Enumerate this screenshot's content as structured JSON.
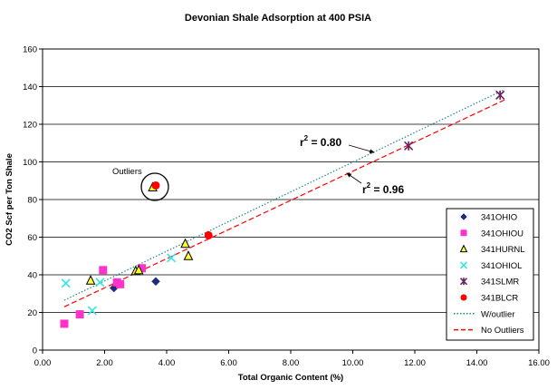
{
  "chart_data": {
    "type": "scatter",
    "title": "Devonian Shale Adsorption at 400 PSIA",
    "xlabel": "Total Organic Content (%)",
    "ylabel": "CO2 Scf per Ton Shale",
    "xlim": [
      0,
      16
    ],
    "ylim": [
      0,
      160
    ],
    "x_ticks": [
      "0.00",
      "2.00",
      "4.00",
      "6.00",
      "8.00",
      "10.00",
      "12.00",
      "14.00",
      "16.00"
    ],
    "y_ticks": [
      "0",
      "20",
      "40",
      "60",
      "80",
      "100",
      "120",
      "140",
      "160"
    ],
    "x_tick_values": [
      0,
      2,
      4,
      6,
      8,
      10,
      12,
      14,
      16
    ],
    "y_tick_values": [
      0,
      20,
      40,
      60,
      80,
      100,
      120,
      140,
      160
    ],
    "grid": "horizontal",
    "legend_position": "bottom-right",
    "series": [
      {
        "name": "341OHIO",
        "marker": "diamond",
        "color": "#1f2a7a",
        "points": [
          [
            2.3,
            33
          ],
          [
            2.4,
            35
          ],
          [
            3.65,
            36.5
          ]
        ]
      },
      {
        "name": "341OHIOU",
        "marker": "square",
        "color": "#ff33cc",
        "points": [
          [
            0.7,
            14
          ],
          [
            1.2,
            19
          ],
          [
            1.95,
            42.5
          ],
          [
            2.4,
            36
          ],
          [
            2.5,
            35
          ],
          [
            3.2,
            43.5
          ]
        ]
      },
      {
        "name": "341HURNL",
        "marker": "triangle",
        "color": "#ffff33",
        "points": [
          [
            1.55,
            37
          ],
          [
            3.0,
            42
          ],
          [
            3.1,
            42.5
          ],
          [
            3.55,
            86.5
          ],
          [
            4.6,
            56.5
          ],
          [
            4.7,
            50
          ]
        ]
      },
      {
        "name": "341OHIOL",
        "marker": "x",
        "color": "#33e5e5",
        "points": [
          [
            0.75,
            35.5
          ],
          [
            1.6,
            21
          ],
          [
            1.85,
            36
          ],
          [
            4.15,
            49
          ]
        ]
      },
      {
        "name": "341SLMR",
        "marker": "star",
        "color": "#6b1f5e",
        "points": [
          [
            11.8,
            108.5
          ],
          [
            14.75,
            135.5
          ]
        ]
      },
      {
        "name": "341BLCR",
        "marker": "circle",
        "color": "#ff0000",
        "points": [
          [
            3.65,
            87.5
          ],
          [
            5.35,
            61
          ]
        ]
      }
    ],
    "trendlines": [
      {
        "name": "W/outlier",
        "style": "dotted",
        "color": "#1f8a8a",
        "from": [
          0.7,
          26.5
        ],
        "to": [
          14.9,
          138.5
        ]
      },
      {
        "name": "No Outliers",
        "style": "dashed",
        "color": "#ff0000",
        "from": [
          0.7,
          23
        ],
        "to": [
          14.9,
          133
        ]
      }
    ],
    "annotations": {
      "outliers_label": "Outliers",
      "r2_with_label": "r",
      "r2_with_sup": "2",
      "r2_with_value": " = 0.80",
      "r2_without_label": "r",
      "r2_without_sup": "2",
      "r2_without_value": " = 0.96"
    },
    "colors": {
      "axis": "#000000",
      "grid": "#000000",
      "plot_background": "#ffffff"
    }
  }
}
